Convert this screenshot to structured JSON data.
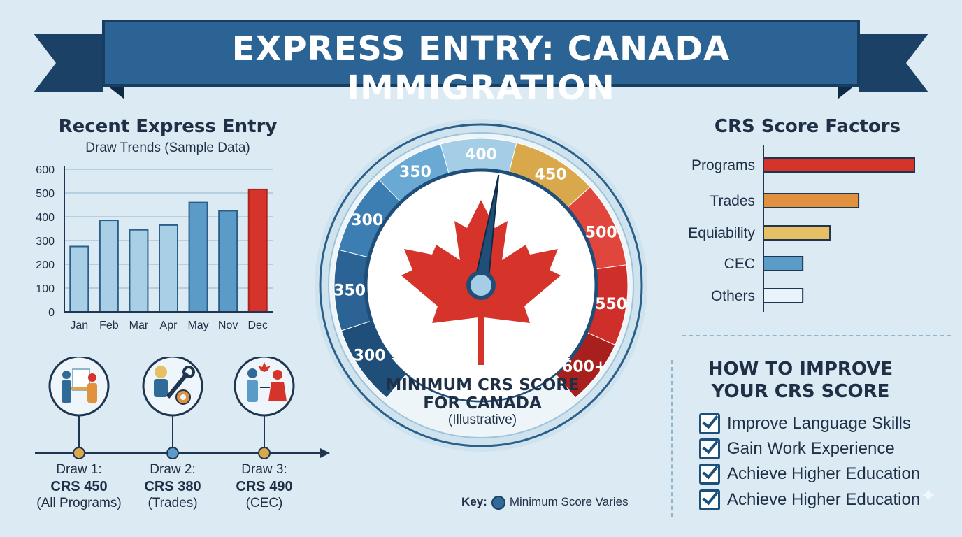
{
  "title": "EXPRESS ENTRY: CANADA IMMIGRATION",
  "colors": {
    "navy": "#1f4e79",
    "blue": "#2f6a99",
    "lightblue": "#8fc0df",
    "gold": "#e0b451",
    "red": "#d6332b",
    "orange": "#e2913f"
  },
  "chart_data": [
    {
      "type": "bar",
      "title": "Recent Express Entry",
      "subtitle": "Draw Trends (Sample Data)",
      "categories": [
        "Jan",
        "Feb",
        "Mar",
        "Apr",
        "May",
        "Nov",
        "Dec"
      ],
      "values": [
        275,
        385,
        345,
        365,
        460,
        425,
        515
      ],
      "highlight_index": 6,
      "yticks": [
        "600",
        "500",
        "400",
        "300",
        "200",
        "100",
        "0"
      ],
      "ylim": [
        0,
        600
      ],
      "grid": true
    },
    {
      "type": "bar",
      "orientation": "horizontal",
      "title": "CRS Score Factors",
      "categories": [
        "Programs",
        "Trades",
        "Equiability",
        "CEC",
        "Others"
      ],
      "values": [
        100,
        63,
        44,
        26,
        26
      ],
      "bar_colors": [
        "#d6332b",
        "#e2913f",
        "#e8c064",
        "#5b9bc7",
        "#eaf3f9"
      ]
    }
  ],
  "gauge": {
    "ticks": [
      "300",
      "350",
      "300",
      "350",
      "400",
      "450",
      "500",
      "550",
      "600+"
    ],
    "needle_value": 470,
    "caption_line1": "MINIMUM CRS SCORE",
    "caption_line2": "FOR CANADA",
    "caption_line3": "(Illustrative)"
  },
  "key": {
    "label": "Key:",
    "text": "Minimum Score Varies"
  },
  "draws": [
    {
      "line1": "Draw 1:",
      "line2": "CRS 450",
      "line3": "(All Programs)",
      "icon": "handshake-icon"
    },
    {
      "line1": "Draw 2:",
      "line2": "CRS 380",
      "line3": "(Trades)",
      "icon": "tools-icon"
    },
    {
      "line1": "Draw 3:",
      "line2": "CRS 490",
      "line3": "(CEC)",
      "icon": "couple-icon"
    }
  ],
  "improve": {
    "title_line1": "HOW TO IMPROVE",
    "title_line2": "YOUR CRS SCORE",
    "items": [
      "Improve Language Skills",
      "Gain Work Experience",
      "Achieve Higher Education",
      "Achieve Higher Education"
    ]
  }
}
